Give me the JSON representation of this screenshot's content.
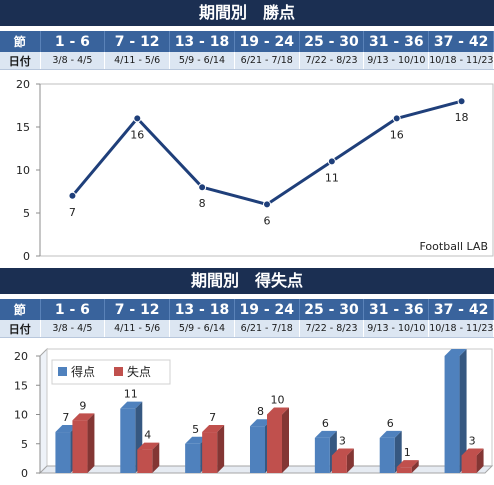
{
  "section_labels": {
    "sec": "節",
    "date": "日付"
  },
  "sections": [
    {
      "sec": "1 - 6",
      "date": "3/8 - 4/5"
    },
    {
      "sec": "7 - 12",
      "date": "4/11 - 5/6"
    },
    {
      "sec": "13 - 18",
      "date": "5/9 - 6/14"
    },
    {
      "sec": "19 - 24",
      "date": "6/21 - 7/18"
    },
    {
      "sec": "25 - 30",
      "date": "7/22 - 8/23"
    },
    {
      "sec": "31 - 36",
      "date": "9/13 - 10/10"
    },
    {
      "sec": "37 - 42",
      "date": "10/18 - 11/23"
    }
  ],
  "colors": {
    "header_dark": "#1b2f52",
    "header_blue": "#39639c",
    "date_row": "#dce6f2",
    "line": "#1f3f7a",
    "goals": "#4f81bd",
    "conceded": "#c0504d"
  },
  "chart_data": [
    {
      "type": "line",
      "title": "期間別　勝点",
      "categories": [
        "1 - 6",
        "7 - 12",
        "13 - 18",
        "19 - 24",
        "25 - 30",
        "31 - 36",
        "37 - 42"
      ],
      "values": [
        7,
        16,
        8,
        6,
        11,
        16,
        18
      ],
      "ylim": [
        0,
        20
      ],
      "yticks": [
        0,
        5,
        10,
        15,
        20
      ],
      "grid": false,
      "credit": "Football LAB"
    },
    {
      "type": "bar",
      "title": "期間別　得失点",
      "categories": [
        "1 - 6",
        "7 - 12",
        "13 - 18",
        "19 - 24",
        "25 - 30",
        "31 - 36",
        "37 - 42"
      ],
      "series": [
        {
          "name": "得点",
          "values": [
            7,
            11,
            5,
            8,
            6,
            6,
            20
          ],
          "color": "#4f81bd"
        },
        {
          "name": "失点",
          "values": [
            9,
            4,
            7,
            10,
            3,
            1,
            3
          ],
          "color": "#c0504d"
        }
      ],
      "ylim": [
        0,
        20
      ],
      "yticks": [
        0,
        5,
        10,
        15,
        20
      ],
      "legend": "top-left"
    }
  ]
}
